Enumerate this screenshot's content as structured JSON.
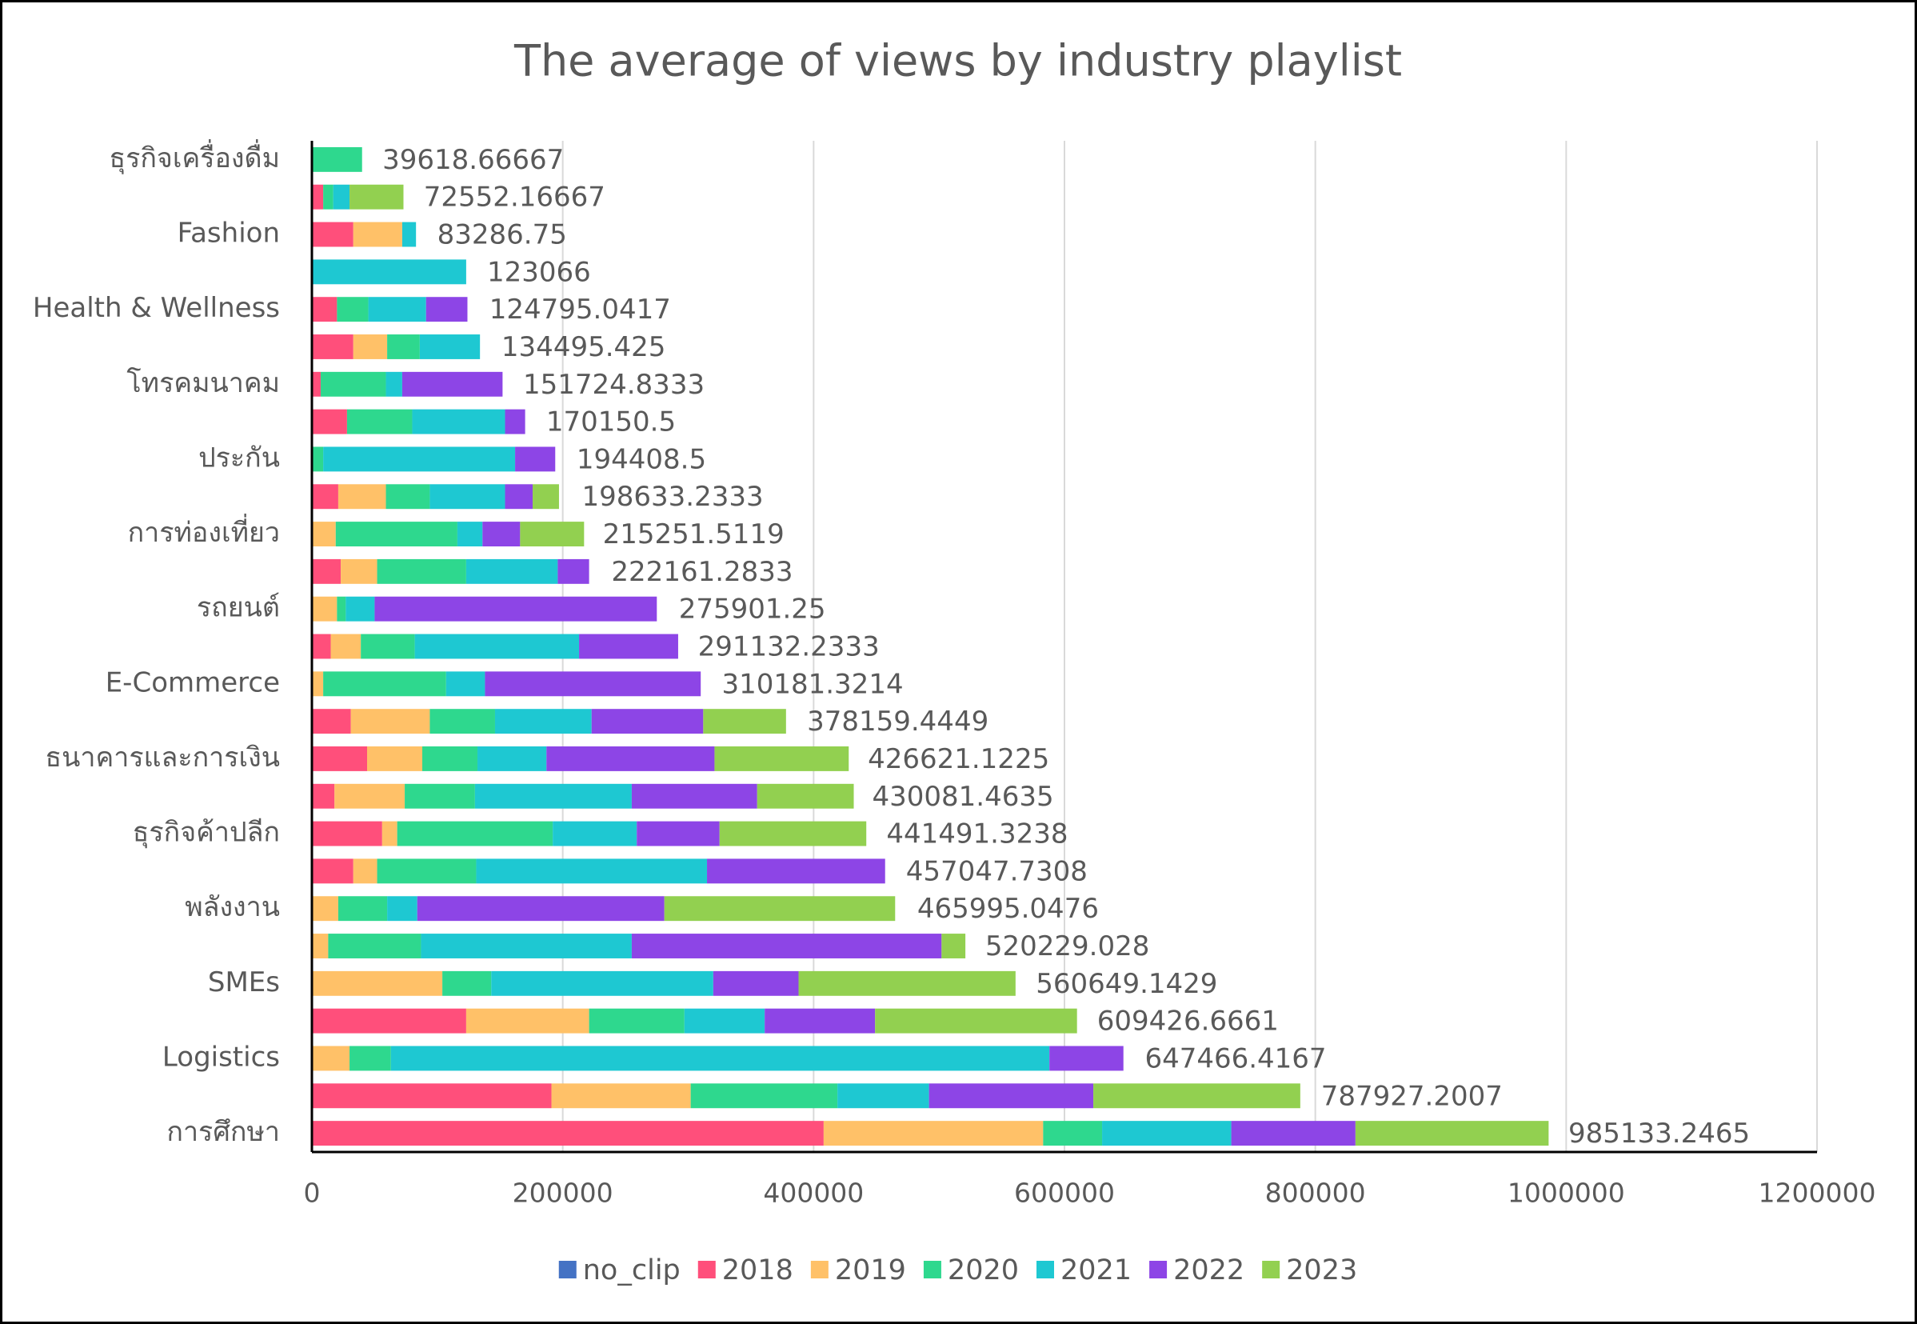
{
  "chart_data": {
    "type": "stacked-barh",
    "title": "The average of views by industry playlist",
    "categories": [
      "ธุรกิจเครื่องดื่ม",
      null,
      "Fashion",
      null,
      "Health & Wellness",
      null,
      "โทรคมนาคม",
      null,
      "ประกัน",
      null,
      "การท่องเที่ยว",
      null,
      "รถยนต์",
      null,
      "E-Commerce",
      null,
      "ธนาคารและการเงิน",
      null,
      "ธุรกิจค้าปลีก",
      null,
      "พลังงาน",
      null,
      "SMEs",
      null,
      "Logistics",
      null,
      "การศึกษา"
    ],
    "series": [
      {
        "name": "no_clip",
        "color": "#4472c4",
        "values": [
          null,
          null,
          null,
          null,
          null,
          null,
          null,
          null,
          null,
          null,
          null,
          null,
          null,
          null,
          null,
          null,
          null,
          null,
          null,
          null,
          null,
          null,
          null,
          null,
          null,
          null,
          null
        ]
      },
      {
        "name": "2018",
        "color": "#ff4f7b",
        "values": [
          null,
          9000,
          33000,
          null,
          20000,
          33000,
          7000,
          28000,
          null,
          21000,
          null,
          23000,
          null,
          15000,
          null,
          31000,
          44000,
          18000,
          56000,
          33000,
          null,
          null,
          null,
          123000,
          null,
          191000,
          408000
        ]
      },
      {
        "name": "2019",
        "color": "#ffc168",
        "values": [
          null,
          null,
          39000,
          null,
          null,
          27000,
          null,
          null,
          null,
          38000,
          19000,
          29000,
          20000,
          24000,
          9000,
          63000,
          44000,
          56000,
          12000,
          19000,
          21000,
          13000,
          104000,
          98000,
          30000,
          111000,
          175000
        ]
      },
      {
        "name": "2020",
        "color": "#2ed88e",
        "values": [
          40000,
          8000,
          null,
          null,
          25000,
          26000,
          52000,
          52000,
          9000,
          35000,
          97000,
          71000,
          7000,
          43000,
          98000,
          52000,
          44000,
          56000,
          124000,
          79000,
          39000,
          74000,
          39000,
          76000,
          33000,
          117000,
          47000
        ]
      },
      {
        "name": "2021",
        "color": "#1ec8d2",
        "values": [
          null,
          13000,
          11000,
          123000,
          46000,
          48000,
          13000,
          74000,
          153000,
          60000,
          20000,
          73000,
          23000,
          131000,
          31000,
          77000,
          55000,
          125000,
          67000,
          184000,
          24000,
          168000,
          177000,
          64000,
          525000,
          73000,
          103000
        ]
      },
      {
        "name": "2022",
        "color": "#8d45e6",
        "values": [
          null,
          null,
          null,
          null,
          33000,
          null,
          80000,
          16000,
          32000,
          22000,
          30000,
          25000,
          225000,
          79000,
          172000,
          89000,
          134000,
          100000,
          66000,
          142000,
          197000,
          247000,
          68000,
          88000,
          59000,
          131000,
          99000
        ]
      },
      {
        "name": "2023",
        "color": "#92d050",
        "values": [
          null,
          43000,
          null,
          null,
          null,
          null,
          null,
          null,
          null,
          21000,
          51000,
          null,
          null,
          null,
          null,
          66000,
          107000,
          77000,
          117000,
          null,
          184000,
          19000,
          173000,
          161000,
          null,
          165000,
          154000
        ]
      }
    ],
    "totals": [
      39618.66667,
      72552.16667,
      83286.75,
      123066,
      124795.0417,
      134495.425,
      151724.8333,
      170150.5,
      194408.5,
      198633.2333,
      215251.5119,
      222161.2833,
      275901.25,
      291132.2333,
      310181.3214,
      378159.4449,
      426621.1225,
      430081.4635,
      441491.3238,
      457047.7308,
      465995.0476,
      520229.028,
      560649.1429,
      609426.6661,
      647466.4167,
      787927.2007,
      985133.2465
    ],
    "xlim": [
      0,
      1200000
    ],
    "xticks": [
      0,
      200000,
      400000,
      600000,
      800000,
      1000000,
      1200000
    ],
    "grid": true,
    "legend": "bottom"
  }
}
